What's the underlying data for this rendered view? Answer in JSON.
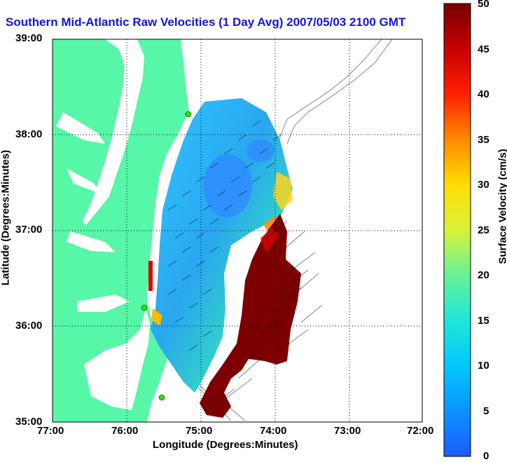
{
  "title": "Southern Mid-Atlantic Raw Velocities (1 Day Avg) 2007/05/03 2100 GMT",
  "xlabel": "Longitude (Degrees:Minutes)",
  "ylabel": "Latitude (Degrees:Minutes)",
  "colorbar_label": "Surface Velocity (cm/s)",
  "x_ticks": [
    "77:00",
    "76:00",
    "75:00",
    "74:00",
    "73:00",
    "72:00"
  ],
  "y_ticks": [
    "39:00",
    "38:00",
    "37:00",
    "36:00",
    "35:00"
  ],
  "colorbar_ticks": [
    "50",
    "45",
    "40",
    "35",
    "30",
    "25",
    "20",
    "15",
    "10",
    "5",
    "0"
  ],
  "colors": {
    "land": "#56f7a7",
    "water": "#ffffff",
    "title": "#1616d6",
    "bathymetry": "#9b9b9b"
  }
}
